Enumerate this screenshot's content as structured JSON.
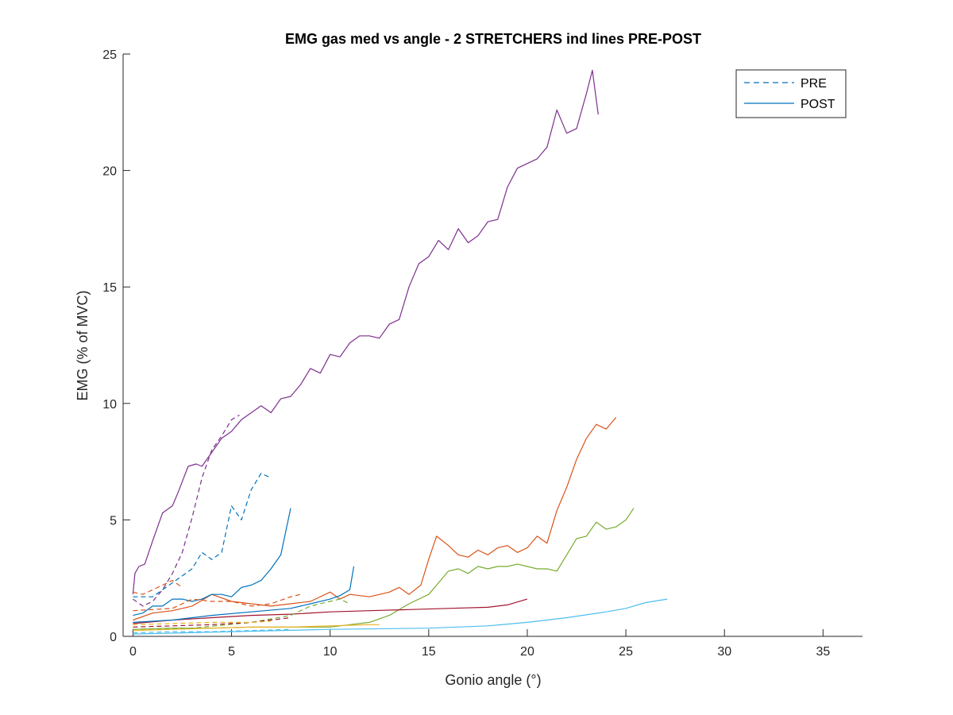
{
  "chart_data": {
    "type": "line",
    "title": "EMG gas med vs angle - 2 STRETCHERS ind lines PRE-POST",
    "xlabel": "Gonio angle (°)",
    "ylabel": "EMG (% of MVC)",
    "xlim": [
      -0.5,
      37
    ],
    "ylim": [
      0,
      25
    ],
    "xticks": [
      0,
      5,
      10,
      15,
      20,
      25,
      30,
      35
    ],
    "yticks": [
      0,
      5,
      10,
      15,
      20,
      25
    ],
    "grid": false,
    "legend": {
      "placement": "top-right",
      "entries": [
        {
          "label": "PRE",
          "style": "dashed"
        },
        {
          "label": "POST",
          "style": "solid"
        }
      ]
    },
    "series": [
      {
        "color": "#7E2F8E",
        "style": "solid",
        "points": [
          [
            0,
            1.8
          ],
          [
            0.1,
            2.7
          ],
          [
            0.3,
            3.0
          ],
          [
            0.6,
            3.1
          ],
          [
            1.0,
            4.1
          ],
          [
            1.5,
            5.3
          ],
          [
            2.0,
            5.6
          ],
          [
            2.3,
            6.2
          ],
          [
            2.8,
            7.3
          ],
          [
            3.2,
            7.4
          ],
          [
            3.5,
            7.3
          ],
          [
            4.0,
            7.9
          ],
          [
            4.5,
            8.5
          ],
          [
            5.0,
            8.8
          ],
          [
            5.5,
            9.3
          ],
          [
            6.0,
            9.6
          ],
          [
            6.5,
            9.9
          ],
          [
            7.0,
            9.6
          ],
          [
            7.5,
            10.2
          ],
          [
            8.0,
            10.3
          ],
          [
            8.5,
            10.8
          ],
          [
            9.0,
            11.5
          ],
          [
            9.5,
            11.3
          ],
          [
            10.0,
            12.1
          ],
          [
            10.5,
            12.0
          ],
          [
            11.0,
            12.6
          ],
          [
            11.5,
            12.9
          ],
          [
            12.0,
            12.9
          ],
          [
            12.5,
            12.8
          ],
          [
            13.0,
            13.4
          ],
          [
            13.5,
            13.6
          ],
          [
            14.0,
            15.0
          ],
          [
            14.5,
            16.0
          ],
          [
            15.0,
            16.3
          ],
          [
            15.5,
            17.0
          ],
          [
            16.0,
            16.6
          ],
          [
            16.5,
            17.5
          ],
          [
            17.0,
            16.9
          ],
          [
            17.5,
            17.2
          ],
          [
            18.0,
            17.8
          ],
          [
            18.5,
            17.9
          ],
          [
            19.0,
            19.3
          ],
          [
            19.5,
            20.1
          ],
          [
            20.0,
            20.3
          ],
          [
            20.5,
            20.5
          ],
          [
            21.0,
            21.0
          ],
          [
            21.5,
            22.6
          ],
          [
            22.0,
            21.6
          ],
          [
            22.5,
            21.8
          ],
          [
            23.0,
            23.3
          ],
          [
            23.3,
            24.3
          ],
          [
            23.6,
            22.4
          ]
        ]
      },
      {
        "color": "#D95319",
        "style": "solid",
        "points": [
          [
            0,
            0.7
          ],
          [
            1,
            1.0
          ],
          [
            2,
            1.1
          ],
          [
            3,
            1.3
          ],
          [
            4,
            1.8
          ],
          [
            5,
            1.5
          ],
          [
            6,
            1.4
          ],
          [
            7,
            1.3
          ],
          [
            8,
            1.4
          ],
          [
            9,
            1.5
          ],
          [
            10,
            1.9
          ],
          [
            10.5,
            1.6
          ],
          [
            11,
            1.8
          ],
          [
            12,
            1.7
          ],
          [
            13,
            1.9
          ],
          [
            13.5,
            2.1
          ],
          [
            14,
            1.8
          ],
          [
            14.6,
            2.2
          ],
          [
            15,
            3.3
          ],
          [
            15.4,
            4.3
          ],
          [
            16,
            3.9
          ],
          [
            16.5,
            3.5
          ],
          [
            17,
            3.4
          ],
          [
            17.5,
            3.7
          ],
          [
            18,
            3.5
          ],
          [
            18.5,
            3.8
          ],
          [
            19,
            3.9
          ],
          [
            19.5,
            3.6
          ],
          [
            20,
            3.8
          ],
          [
            20.5,
            4.3
          ],
          [
            21,
            4.0
          ],
          [
            21.5,
            5.4
          ],
          [
            22,
            6.4
          ],
          [
            22.5,
            7.6
          ],
          [
            23,
            8.5
          ],
          [
            23.5,
            9.1
          ],
          [
            24,
            8.9
          ],
          [
            24.5,
            9.4
          ]
        ]
      },
      {
        "color": "#77AC30",
        "style": "solid",
        "points": [
          [
            0,
            0.3
          ],
          [
            2,
            0.35
          ],
          [
            4,
            0.35
          ],
          [
            6,
            0.4
          ],
          [
            8,
            0.4
          ],
          [
            10,
            0.4
          ],
          [
            12,
            0.6
          ],
          [
            13,
            0.9
          ],
          [
            14,
            1.4
          ],
          [
            15,
            1.8
          ],
          [
            15.5,
            2.3
          ],
          [
            16,
            2.8
          ],
          [
            16.5,
            2.9
          ],
          [
            17,
            2.7
          ],
          [
            17.5,
            3.0
          ],
          [
            18,
            2.9
          ],
          [
            18.5,
            3.0
          ],
          [
            19,
            3.0
          ],
          [
            19.5,
            3.1
          ],
          [
            20,
            3.0
          ],
          [
            20.5,
            2.9
          ],
          [
            21,
            2.9
          ],
          [
            21.5,
            2.8
          ],
          [
            22,
            3.5
          ],
          [
            22.5,
            4.2
          ],
          [
            23,
            4.3
          ],
          [
            23.5,
            4.9
          ],
          [
            24,
            4.6
          ],
          [
            24.5,
            4.7
          ],
          [
            25,
            5.0
          ],
          [
            25.4,
            5.5
          ]
        ]
      },
      {
        "color": "#4DBEEE",
        "style": "solid",
        "points": [
          [
            0,
            0.1
          ],
          [
            5,
            0.2
          ],
          [
            10,
            0.3
          ],
          [
            15,
            0.35
          ],
          [
            18,
            0.45
          ],
          [
            20,
            0.6
          ],
          [
            22,
            0.8
          ],
          [
            24,
            1.05
          ],
          [
            25,
            1.2
          ],
          [
            26,
            1.45
          ],
          [
            27.1,
            1.6
          ]
        ]
      },
      {
        "color": "#A2142F",
        "style": "solid",
        "points": [
          [
            0,
            0.55
          ],
          [
            2,
            0.7
          ],
          [
            4,
            0.8
          ],
          [
            6,
            0.9
          ],
          [
            8,
            0.95
          ],
          [
            10,
            1.05
          ],
          [
            12,
            1.1
          ],
          [
            14,
            1.15
          ],
          [
            16,
            1.2
          ],
          [
            18,
            1.25
          ],
          [
            19,
            1.35
          ],
          [
            20,
            1.6
          ]
        ]
      },
      {
        "color": "#0072BD",
        "style": "solid",
        "points": [
          [
            0,
            0.9
          ],
          [
            0.5,
            1.0
          ],
          [
            1,
            1.3
          ],
          [
            1.5,
            1.3
          ],
          [
            2,
            1.6
          ],
          [
            2.5,
            1.6
          ],
          [
            3,
            1.5
          ],
          [
            3.5,
            1.6
          ],
          [
            4,
            1.8
          ],
          [
            4.5,
            1.8
          ],
          [
            5,
            1.7
          ],
          [
            5.5,
            2.1
          ],
          [
            6,
            2.2
          ],
          [
            6.5,
            2.4
          ],
          [
            7,
            2.9
          ],
          [
            7.5,
            3.5
          ],
          [
            8,
            5.5
          ]
        ]
      },
      {
        "color": "#0072BD",
        "style": "solid",
        "points": [
          [
            0,
            0.6
          ],
          [
            2,
            0.7
          ],
          [
            4,
            0.9
          ],
          [
            6,
            1.05
          ],
          [
            8,
            1.2
          ],
          [
            9,
            1.4
          ],
          [
            10,
            1.6
          ],
          [
            10.5,
            1.75
          ],
          [
            11,
            2.0
          ],
          [
            11.2,
            3.0
          ]
        ]
      },
      {
        "color": "#EDB120",
        "style": "solid",
        "points": [
          [
            0,
            0.25
          ],
          [
            2,
            0.3
          ],
          [
            4,
            0.35
          ],
          [
            6,
            0.4
          ],
          [
            8,
            0.4
          ],
          [
            10,
            0.45
          ],
          [
            12,
            0.5
          ],
          [
            12.5,
            0.5
          ]
        ]
      },
      {
        "color": "#7E2F8E",
        "style": "dashed",
        "points": [
          [
            0,
            1.6
          ],
          [
            0.5,
            1.3
          ],
          [
            1,
            1.5
          ],
          [
            1.5,
            2.0
          ],
          [
            2,
            2.7
          ],
          [
            2.5,
            3.6
          ],
          [
            3,
            5.1
          ],
          [
            3.5,
            6.8
          ],
          [
            4,
            8.0
          ],
          [
            4.5,
            8.6
          ],
          [
            5,
            9.3
          ],
          [
            5.4,
            9.5
          ]
        ]
      },
      {
        "color": "#0072BD",
        "style": "dashed",
        "points": [
          [
            0,
            1.7
          ],
          [
            1,
            1.7
          ],
          [
            2,
            2.3
          ],
          [
            3,
            2.9
          ],
          [
            3.5,
            3.6
          ],
          [
            4,
            3.3
          ],
          [
            4.5,
            3.6
          ],
          [
            5,
            5.6
          ],
          [
            5.5,
            5.0
          ],
          [
            6,
            6.3
          ],
          [
            6.5,
            7.0
          ],
          [
            7,
            6.8
          ]
        ]
      },
      {
        "color": "#D95319",
        "style": "dashed",
        "points": [
          [
            0,
            1.9
          ],
          [
            0.5,
            1.8
          ],
          [
            1,
            2.0
          ],
          [
            1.5,
            2.2
          ],
          [
            2,
            2.4
          ],
          [
            2.5,
            2.1
          ]
        ]
      },
      {
        "color": "#D95319",
        "style": "dashed",
        "points": [
          [
            0,
            1.1
          ],
          [
            2,
            1.2
          ],
          [
            3,
            1.6
          ],
          [
            4,
            1.5
          ],
          [
            5,
            1.5
          ],
          [
            6,
            1.3
          ],
          [
            7,
            1.4
          ],
          [
            8,
            1.7
          ],
          [
            8.5,
            1.8
          ]
        ]
      },
      {
        "color": "#77AC30",
        "style": "dashed",
        "points": [
          [
            0,
            0.3
          ],
          [
            3,
            0.35
          ],
          [
            6,
            0.6
          ],
          [
            8,
            0.9
          ],
          [
            9,
            1.3
          ],
          [
            10,
            1.5
          ],
          [
            10.5,
            1.6
          ],
          [
            11,
            1.4
          ]
        ]
      },
      {
        "color": "#A2142F",
        "style": "dashed",
        "points": [
          [
            0,
            0.4
          ],
          [
            2,
            0.45
          ],
          [
            4,
            0.5
          ],
          [
            6,
            0.6
          ],
          [
            7,
            0.7
          ],
          [
            8,
            0.8
          ]
        ]
      },
      {
        "color": "#4DBEEE",
        "style": "dashed",
        "points": [
          [
            0,
            0.15
          ],
          [
            2,
            0.2
          ],
          [
            4,
            0.2
          ],
          [
            6,
            0.25
          ],
          [
            8,
            0.3
          ]
        ]
      },
      {
        "color": "#EDB120",
        "style": "dashed",
        "points": [
          [
            0,
            0.5
          ],
          [
            2,
            0.55
          ],
          [
            4,
            0.6
          ],
          [
            6,
            0.6
          ],
          [
            7,
            0.65
          ]
        ]
      }
    ]
  }
}
